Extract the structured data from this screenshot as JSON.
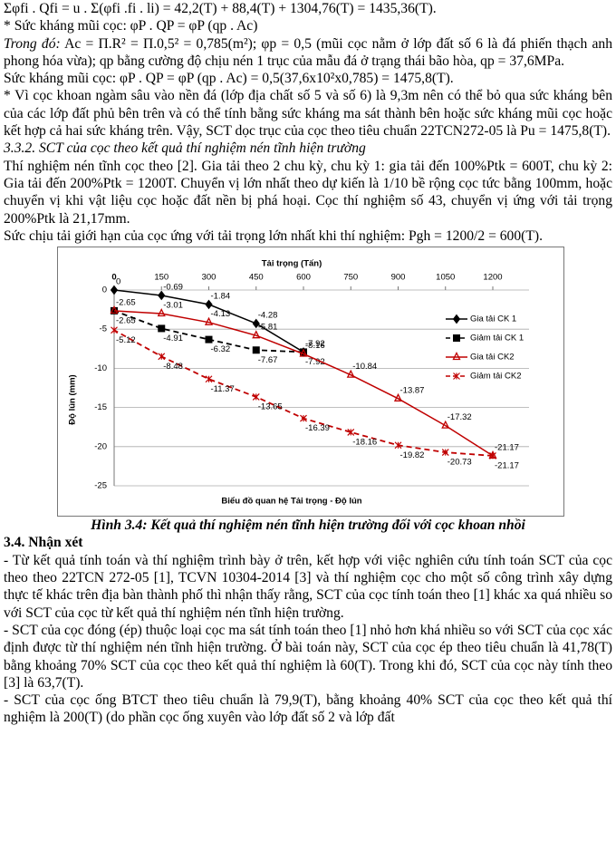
{
  "paragraphs_top": [
    "Σφfi . Qfi = u . Σ(φfi .fi . li) = 42,2(T) + 88,4(T) + 1304,76(T) = 1435,36(T).",
    "* Sức kháng mũi cọc: φP . QP = φP (qp . Ac)"
  ],
  "note": {
    "lead": "Trong đó:",
    "text": " Ac = Π.R² = Π.0,5² = 0,785(m²); φp = 0,5 (mũi cọc nằm ở lớp đất số 6 là đá phiến thạch anh phong hóa vừa); qp bằng cường độ chịu nén 1 trục của mẫu đá ở trạng thái bão hòa, qp = 37,6MPa."
  },
  "paragraphs_mid": [
    "Sức kháng mũi cọc: φP . QP = φP (qp . Ac) = 0,5(37,6x10²x0,785) = 1475,8(T).",
    "* Vì cọc khoan ngàm sâu vào nền đá (lớp địa chất số 5 và số 6) là 9,3m nên có thể bỏ qua sức kháng bên của các lớp đất phủ bên trên và có thể tính bằng sức kháng ma sát thành bên hoặc sức kháng mũi cọc hoặc kết hợp cả hai sức kháng trên. Vậy, SCT dọc trục của cọc theo tiêu chuẩn 22TCN272-05 là Pu = 1475,8(T)."
  ],
  "section_332": "3.3.2. SCT của cọc theo kết quả thí nghiệm nén tĩnh hiện trường",
  "paragraphs_332": [
    "Thí nghiệm nén tĩnh cọc theo [2]. Gia tải theo 2 chu kỳ, chu kỳ 1: gia tải đến 100%Ptk = 600T, chu kỳ 2: Gia tải đến 200%Ptk = 1200T. Chuyển vị lớn nhất theo dự kiến là 1/10 bề rộng cọc tức bằng 100mm, hoặc chuyển vị khi vật liệu cọc hoặc đất nền bị phá hoại. Cọc thí nghiệm số 43, chuyển vị ứng với tải trọng 200%Ptk là 21,17mm.",
    "Sức chịu tải giới hạn của cọc ứng với tải trọng lớn nhất khi thí nghiệm: Pgh = 1200/2 = 600(T)."
  ],
  "chart_data": {
    "type": "line",
    "title": "Biểu đồ quan hệ Tải trọng - Độ lún",
    "x_label": "Tải trọng (Tấn)",
    "y_label": "Độ lún (mm)",
    "xlim": [
      0,
      1200
    ],
    "xticks": [
      0,
      150,
      300,
      450,
      600,
      750,
      900,
      1050,
      1200
    ],
    "ylim": [
      -25,
      0
    ],
    "yticks": [
      0,
      -5,
      -10,
      -15,
      -20,
      -25
    ],
    "grid": true,
    "legend": "right",
    "series": [
      {
        "name": "Gia tải CK 1",
        "color": "#000000",
        "marker": "diamond",
        "dash": false,
        "x": [
          0,
          150,
          300,
          450,
          600
        ],
        "values": [
          0,
          -0.69,
          -1.84,
          -4.28,
          -7.92
        ]
      },
      {
        "name": "Giảm tải CK 1",
        "color": "#000000",
        "marker": "square",
        "dash": true,
        "x": [
          600,
          450,
          300,
          150,
          0
        ],
        "values": [
          -7.92,
          -7.67,
          -6.32,
          -4.91,
          -2.65
        ]
      },
      {
        "name": "Gia tải CK2",
        "color": "#c00000",
        "marker": "triangle",
        "dash": false,
        "x": [
          0,
          150,
          300,
          450,
          600,
          750,
          900,
          1050,
          1200
        ],
        "values": [
          -2.65,
          -3.01,
          -4.13,
          -5.81,
          -8.16,
          -10.84,
          -13.87,
          -17.32,
          -21.17
        ]
      },
      {
        "name": "Giảm tải CK2",
        "color": "#c00000",
        "marker": "star",
        "dash": true,
        "x": [
          1200,
          1050,
          900,
          750,
          600,
          450,
          300,
          150,
          0
        ],
        "values": [
          -21.17,
          -20.73,
          -19.82,
          -18.16,
          -16.39,
          -13.65,
          -11.37,
          -8.48,
          -5.12
        ]
      }
    ]
  },
  "caption": "Hình 3.4: Kết quả thí nghiệm nén tĩnh hiện trường đối với cọc khoan nhồi",
  "section_34": "3.4. Nhận xét",
  "paragraphs_34": [
    "- Từ kết quả tính toán và thí nghiệm trình bày ở trên, kết hợp với việc nghiên cứu tính toán SCT của cọc theo theo 22TCN 272-05 [1], TCVN 10304-2014 [3] và thí nghiệm cọc cho một số công trình xây dựng thực tế khác trên địa bàn thành phố thì nhận thấy rằng, SCT của cọc tính toán theo [1] khác xa quá nhiều so với SCT của cọc từ kết quả thí nghiệm nén tĩnh hiện trường.",
    "- SCT của cọc đóng (ép) thuộc loại cọc ma sát tính toán theo [1] nhỏ hơn khá nhiều so với SCT của cọc xác định được từ thí nghiệm nén tĩnh hiện trường. Ở bài toán này, SCT của cọc ép theo tiêu chuẩn là 41,78(T) bằng khoảng 70% SCT của cọc theo kết quả thí nghiệm là 60(T). Trong khi đó, SCT của cọc này tính theo [3] là 63,7(T).",
    "- SCT của cọc ống BTCT theo tiêu chuẩn là 79,9(T), bằng khoảng 40% SCT của cọc theo kết quả thí nghiệm là 200(T) (do phần cọc ống xuyên vào lớp đất số 2 và lớp đất"
  ]
}
